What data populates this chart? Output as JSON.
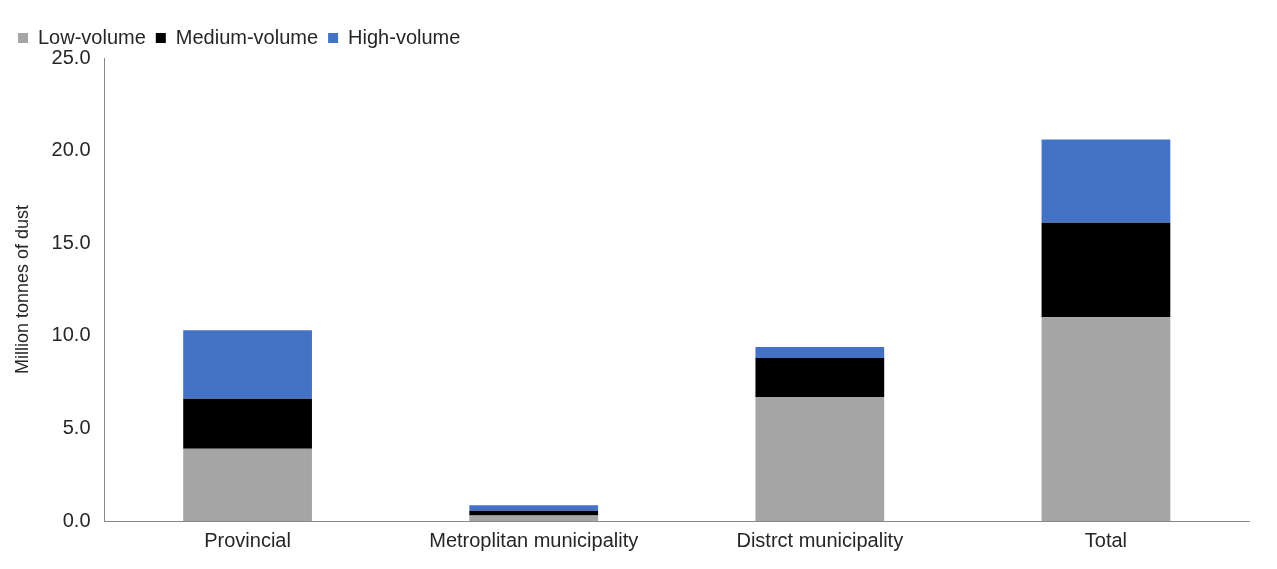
{
  "chart_data": {
    "type": "bar",
    "stacked": true,
    "ylabel": "Million tonnes of dust",
    "categories": [
      "Provincial",
      "Metroplitan municipality",
      "Distrct municipality",
      "Total"
    ],
    "series": [
      {
        "name": "Low-volume",
        "color": "#a5a5a5",
        "values": [
          3.9,
          0.3,
          6.7,
          11.0
        ]
      },
      {
        "name": "Medium-volume",
        "color": "#000000",
        "values": [
          2.7,
          0.25,
          2.1,
          5.1
        ]
      },
      {
        "name": "High-volume",
        "color": "#4472c4",
        "values": [
          3.7,
          0.3,
          0.6,
          4.5
        ]
      }
    ],
    "ylim": [
      0,
      25
    ],
    "yticks": [
      {
        "value": 0,
        "label": "0.0"
      },
      {
        "value": 5,
        "label": "5.0"
      },
      {
        "value": 10,
        "label": "10.0"
      },
      {
        "value": 15,
        "label": "15.0"
      },
      {
        "value": 20,
        "label": "20.0"
      },
      {
        "value": 25,
        "label": "25.0"
      }
    ],
    "grid": false,
    "legend": "top left"
  }
}
